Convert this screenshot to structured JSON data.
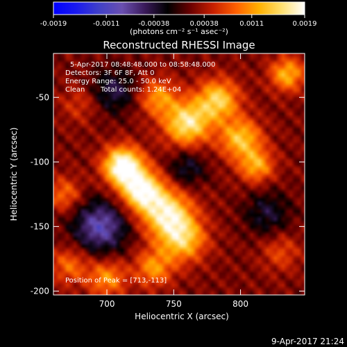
{
  "chart_data": {
    "type": "heatmap",
    "title": "Reconstructed RHESSI Image",
    "xlabel": "Heliocentric X (arcsec)",
    "ylabel": "Heliocentric Y (arcsec)",
    "xlim": [
      660,
      848
    ],
    "ylim": [
      -203,
      -16
    ],
    "xticks": [
      {
        "value": 700,
        "label": "700"
      },
      {
        "value": 750,
        "label": "750"
      },
      {
        "value": 800,
        "label": "800"
      }
    ],
    "yticks": [
      {
        "value": -50,
        "label": "-50"
      },
      {
        "value": -100,
        "label": "-100"
      },
      {
        "value": -150,
        "label": "-150"
      },
      {
        "value": -200,
        "label": "-200"
      }
    ],
    "colorbar": {
      "range": [
        -0.0019,
        0.0019
      ],
      "ticks": [
        {
          "value": -0.0019,
          "label": "-0.0019"
        },
        {
          "value": -0.0011,
          "label": "-0.0011"
        },
        {
          "value": -0.00038,
          "label": "-0.00038"
        },
        {
          "value": 0.00038,
          "label": "0.00038"
        },
        {
          "value": 0.0011,
          "label": "0.0011"
        },
        {
          "value": 0.0019,
          "label": "0.0019"
        }
      ],
      "unit_label": "(photons cm⁻² s⁻¹ asec⁻²)",
      "colormap": [
        "#0000ff",
        "#1a1aee",
        "#4040c8",
        "#6a4fb0",
        "#3a1a5a",
        "#000000",
        "#6a0000",
        "#c82000",
        "#ff6000",
        "#ffb000",
        "#ffe070",
        "#ffffff"
      ]
    },
    "annotations": {
      "time_range": "5-Apr-2017 08:48:48.000 to 08:58:48.000",
      "detectors": "Detectors: 3F 6F 8F, Att 0",
      "energy_range": "Energy Range: 25.0 - 50.0 keV",
      "clean": "Clean",
      "total_counts": "Total counts: 1.24E+04",
      "peak_position": "Position of Peak = [713,-113]"
    },
    "intensity_sources": [
      {
        "x": 712,
        "y": -103,
        "sigma": 10,
        "amplitude": 1.0
      },
      {
        "x": 726,
        "y": -122,
        "sigma": 11,
        "amplitude": 0.85
      },
      {
        "x": 745,
        "y": -140,
        "sigma": 13,
        "amplitude": 0.75
      },
      {
        "x": 757,
        "y": -160,
        "sigma": 12,
        "amplitude": 0.6
      },
      {
        "x": 735,
        "y": -182,
        "sigma": 10,
        "amplitude": 0.45
      },
      {
        "x": 700,
        "y": -190,
        "sigma": 10,
        "amplitude": 0.45
      },
      {
        "x": 672,
        "y": -180,
        "sigma": 10,
        "amplitude": 0.35
      },
      {
        "x": 760,
        "y": -70,
        "sigma": 12,
        "amplitude": 0.75
      },
      {
        "x": 783,
        "y": -52,
        "sigma": 11,
        "amplitude": 0.65
      },
      {
        "x": 800,
        "y": -82,
        "sigma": 11,
        "amplitude": 0.6
      },
      {
        "x": 812,
        "y": -103,
        "sigma": 9,
        "amplitude": 0.5
      },
      {
        "x": 738,
        "y": -50,
        "sigma": 10,
        "amplitude": 0.45
      },
      {
        "x": 835,
        "y": -32,
        "sigma": 9,
        "amplitude": 0.55
      },
      {
        "x": 668,
        "y": -125,
        "sigma": 9,
        "amplitude": 0.35
      },
      {
        "x": 680,
        "y": -55,
        "sigma": 10,
        "amplitude": 0.2
      },
      {
        "x": 830,
        "y": -170,
        "sigma": 10,
        "amplitude": 0.25
      }
    ],
    "negative_regions": [
      {
        "x": 695,
        "y": -150,
        "sigma": 14,
        "amplitude": -0.6
      },
      {
        "x": 705,
        "y": -45,
        "sigma": 12,
        "amplitude": -0.35
      },
      {
        "x": 760,
        "y": -105,
        "sigma": 10,
        "amplitude": -0.3
      },
      {
        "x": 820,
        "y": -140,
        "sigma": 12,
        "amplitude": -0.3
      }
    ]
  },
  "timestamp": "9-Apr-2017 21:24"
}
